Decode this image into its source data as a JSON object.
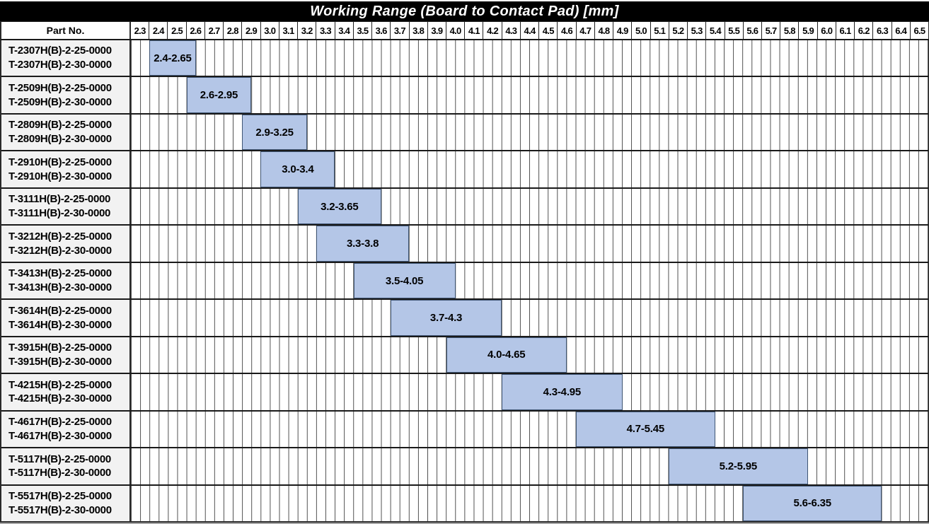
{
  "title": "Working Range (Board to Contact Pad) [mm]",
  "header": {
    "part_no_label": "Part No."
  },
  "colors": {
    "title_bg": "#000000",
    "title_text": "#ffffff",
    "bar_fill": "#b4c6e7",
    "bar_border": "#3f5573",
    "label_column_bg": "#f2f2f2",
    "grid_line": "#4d4d4d"
  },
  "chart_data": {
    "type": "bar",
    "subtype": "horizontal-range-gantt",
    "title": "Working Range (Board to Contact Pad) [mm]",
    "xlabel": "Board to Contact Pad [mm]",
    "ylabel": "Part No.",
    "grid": "on",
    "axis": {
      "min": 2.3,
      "max": 6.6,
      "tick_step": 0.1,
      "minor_step": 0.05,
      "tick_labels": [
        "2.3",
        "2.4",
        "2.5",
        "2.6",
        "2.7",
        "2.8",
        "2.9",
        "3.0",
        "3.1",
        "3.2",
        "3.3",
        "3.4",
        "3.5",
        "3.6",
        "3.7",
        "3.8",
        "3.9",
        "4.0",
        "4.1",
        "4.2",
        "4.3",
        "4.4",
        "4.5",
        "4.6",
        "4.7",
        "4.8",
        "4.9",
        "5.0",
        "5.1",
        "5.2",
        "5.3",
        "5.4",
        "5.5",
        "5.6",
        "5.7",
        "5.8",
        "5.9",
        "6.0",
        "6.1",
        "6.2",
        "6.3",
        "6.4",
        "6.5"
      ]
    },
    "rows": [
      {
        "part_numbers": [
          "T-2307H(B)-2-25-0000",
          "T-2307H(B)-2-30-0000"
        ],
        "range_start": 2.4,
        "range_end": 2.65,
        "range_label": "2.4-2.65"
      },
      {
        "part_numbers": [
          "T-2509H(B)-2-25-0000",
          "T-2509H(B)-2-30-0000"
        ],
        "range_start": 2.6,
        "range_end": 2.95,
        "range_label": "2.6-2.95"
      },
      {
        "part_numbers": [
          "T-2809H(B)-2-25-0000",
          "T-2809H(B)-2-30-0000"
        ],
        "range_start": 2.9,
        "range_end": 3.25,
        "range_label": "2.9-3.25"
      },
      {
        "part_numbers": [
          "T-2910H(B)-2-25-0000",
          "T-2910H(B)-2-30-0000"
        ],
        "range_start": 3.0,
        "range_end": 3.4,
        "range_label": "3.0-3.4"
      },
      {
        "part_numbers": [
          "T-3111H(B)-2-25-0000",
          "T-3111H(B)-2-30-0000"
        ],
        "range_start": 3.2,
        "range_end": 3.65,
        "range_label": "3.2-3.65"
      },
      {
        "part_numbers": [
          "T-3212H(B)-2-25-0000",
          "T-3212H(B)-2-30-0000"
        ],
        "range_start": 3.3,
        "range_end": 3.8,
        "range_label": "3.3-3.8"
      },
      {
        "part_numbers": [
          "T-3413H(B)-2-25-0000",
          "T-3413H(B)-2-30-0000"
        ],
        "range_start": 3.5,
        "range_end": 4.05,
        "range_label": "3.5-4.05"
      },
      {
        "part_numbers": [
          "T-3614H(B)-2-25-0000",
          "T-3614H(B)-2-30-0000"
        ],
        "range_start": 3.7,
        "range_end": 4.3,
        "range_label": "3.7-4.3"
      },
      {
        "part_numbers": [
          "T-3915H(B)-2-25-0000",
          "T-3915H(B)-2-30-0000"
        ],
        "range_start": 4.0,
        "range_end": 4.65,
        "range_label": "4.0-4.65"
      },
      {
        "part_numbers": [
          "T-4215H(B)-2-25-0000",
          "T-4215H(B)-2-30-0000"
        ],
        "range_start": 4.3,
        "range_end": 4.95,
        "range_label": "4.3-4.95"
      },
      {
        "part_numbers": [
          "T-4617H(B)-2-25-0000",
          "T-4617H(B)-2-30-0000"
        ],
        "range_start": 4.7,
        "range_end": 5.45,
        "range_label": "4.7-5.45"
      },
      {
        "part_numbers": [
          "T-5117H(B)-2-25-0000",
          "T-5117H(B)-2-30-0000"
        ],
        "range_start": 5.2,
        "range_end": 5.95,
        "range_label": "5.2-5.95"
      },
      {
        "part_numbers": [
          "T-5517H(B)-2-25-0000",
          "T-5517H(B)-2-30-0000"
        ],
        "range_start": 5.6,
        "range_end": 6.35,
        "range_label": "5.6-6.35"
      }
    ]
  }
}
